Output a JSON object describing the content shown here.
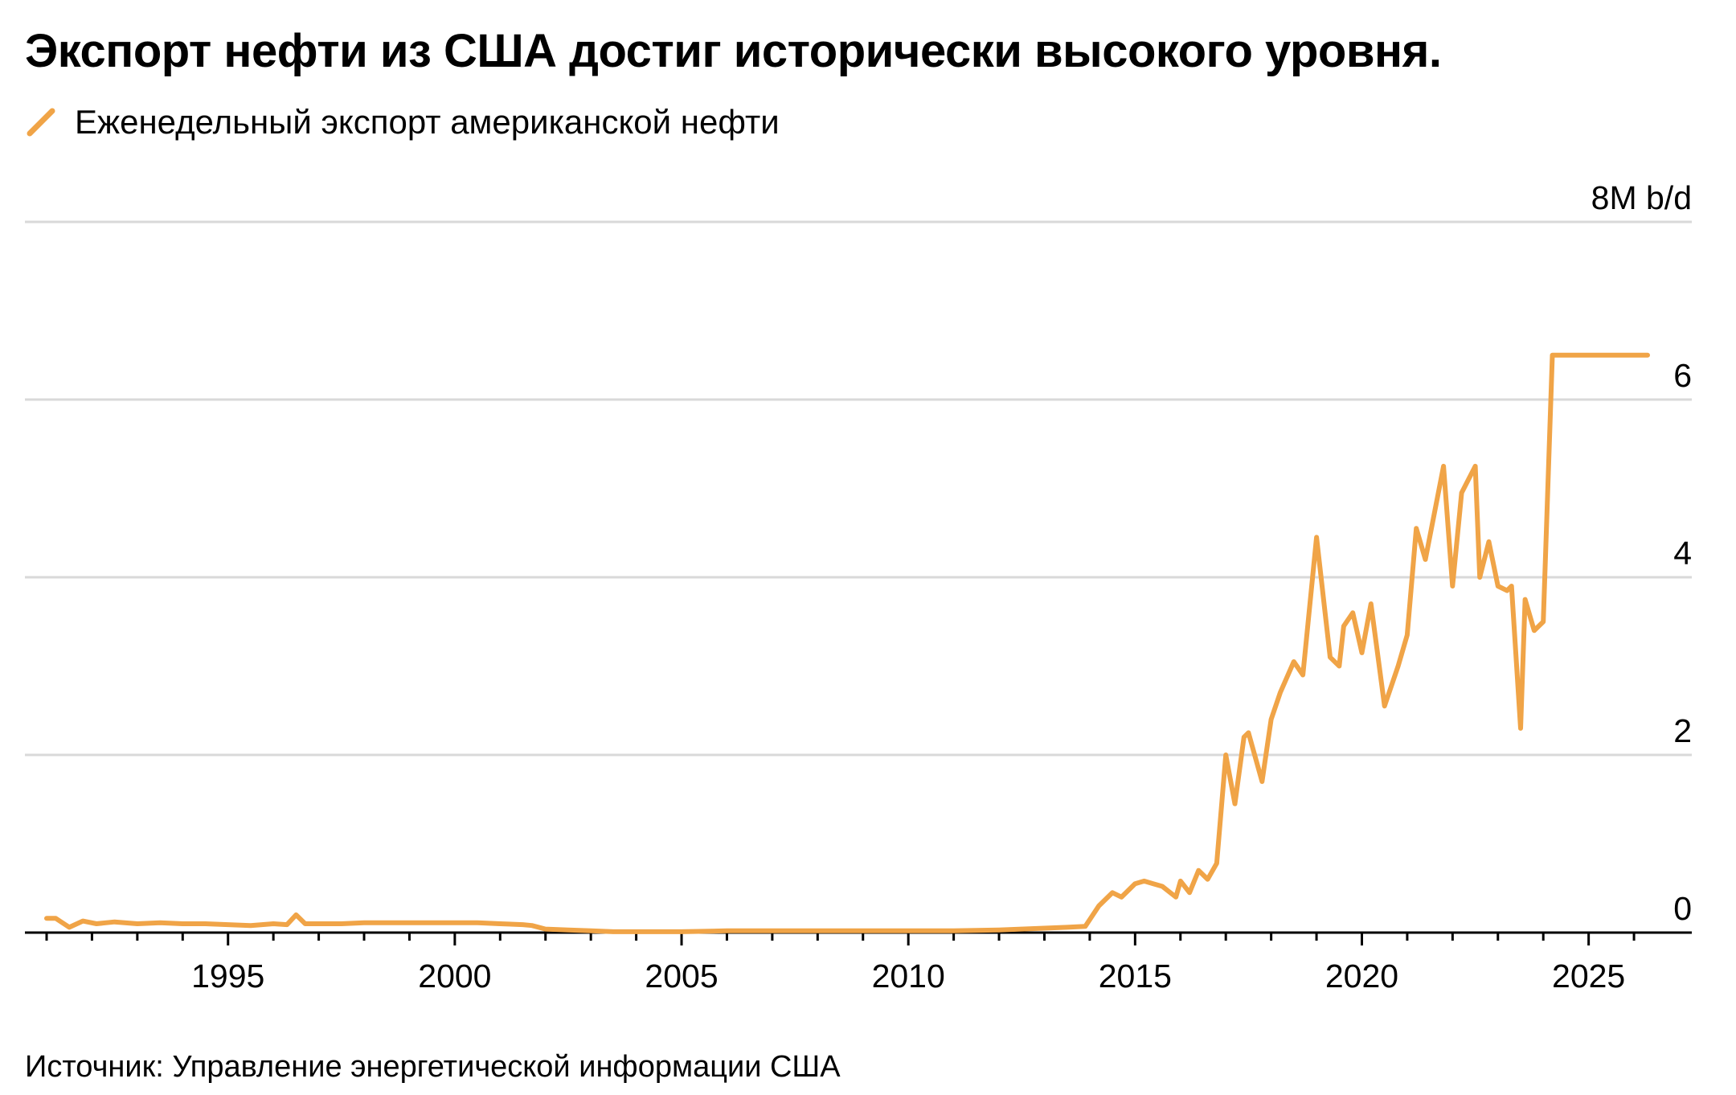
{
  "title": "Экспорт нефти из США достиг исторически высокого уровня.",
  "legend": {
    "label": "Еженедельный экспорт американской нефти"
  },
  "source": "Источник: Управление энергетической информации США",
  "colors": {
    "series": "#f0a447",
    "grid": "#d9d9d9",
    "axis": "#000000",
    "text": "#000000"
  },
  "chart_data": {
    "type": "line",
    "title": "Экспорт нефти из США достиг исторически высокого уровня.",
    "xlabel": "",
    "ylabel": "",
    "y_unit_label": "8M b/d",
    "xlim": [
      1991,
      2026.3
    ],
    "ylim": [
      0,
      8
    ],
    "y_ticks": [
      0,
      2,
      4,
      6,
      8
    ],
    "y_tick_labels": [
      "0",
      "2",
      "4",
      "6",
      "8M b/d"
    ],
    "x_ticks": [
      1995,
      2000,
      2005,
      2010,
      2015,
      2020,
      2025
    ],
    "x_tick_labels": [
      "1995",
      "2000",
      "2005",
      "2010",
      "2015",
      "2020",
      "2025"
    ],
    "grid": true,
    "legend_position": "top-left",
    "series": [
      {
        "name": "Еженедельный экспорт американской нефти",
        "color": "#f0a447",
        "x": [
          1991.0,
          1991.2,
          1991.5,
          1991.8,
          1992.1,
          1992.5,
          1993.0,
          1993.5,
          1994.0,
          1994.5,
          1995.0,
          1995.5,
          1996.0,
          1996.3,
          1996.5,
          1996.7,
          1997.0,
          1997.5,
          1998.0,
          1998.5,
          1999.0,
          1999.5,
          2000.0,
          2000.5,
          2001.0,
          2001.5,
          2001.7,
          2002.0,
          2002.5,
          2003.0,
          2003.5,
          2004.0,
          2004.5,
          2005.0,
          2006.0,
          2007.0,
          2008.0,
          2009.0,
          2010.0,
          2011.0,
          2012.0,
          2012.5,
          2013.0,
          2013.5,
          2013.9,
          2014.2,
          2014.5,
          2014.7,
          2015.0,
          2015.2,
          2015.4,
          2015.6,
          2015.9,
          2016.0,
          2016.2,
          2016.4,
          2016.6,
          2016.8,
          2017.0,
          2017.2,
          2017.4,
          2017.5,
          2017.8,
          2018.0,
          2018.2,
          2018.5,
          2018.7,
          2019.0,
          2019.3,
          2019.5,
          2019.6,
          2019.8,
          2020.0,
          2020.2,
          2020.5,
          2020.8,
          2021.0,
          2021.2,
          2021.4,
          2021.8,
          2022.0,
          2022.2,
          2022.5,
          2022.6,
          2022.8,
          2023.0,
          2023.2,
          2023.3,
          2023.5,
          2023.6,
          2023.8,
          2024.0,
          2024.2,
          2024.5,
          2024.8,
          2025.0,
          2025.2,
          2025.5,
          2025.7,
          2025.9,
          2026.1,
          2026.3
        ],
        "y": [
          0.16,
          0.16,
          0.06,
          0.13,
          0.1,
          0.12,
          0.1,
          0.11,
          0.1,
          0.1,
          0.09,
          0.08,
          0.1,
          0.09,
          0.2,
          0.1,
          0.1,
          0.1,
          0.11,
          0.11,
          0.11,
          0.11,
          0.11,
          0.11,
          0.1,
          0.09,
          0.08,
          0.04,
          0.03,
          0.02,
          0.01,
          0.01,
          0.01,
          0.01,
          0.02,
          0.02,
          0.02,
          0.02,
          0.02,
          0.02,
          0.03,
          0.04,
          0.05,
          0.06,
          0.07,
          0.3,
          0.45,
          0.4,
          0.55,
          0.58,
          0.55,
          0.52,
          0.4,
          0.58,
          0.45,
          0.7,
          0.6,
          0.78,
          2.0,
          1.45,
          2.2,
          2.25,
          1.7,
          2.4,
          2.7,
          3.05,
          2.9,
          4.45,
          3.1,
          3.0,
          3.45,
          3.6,
          3.15,
          3.7,
          2.55,
          3.0,
          3.35,
          4.55,
          4.2,
          5.25,
          3.9,
          4.95,
          5.25,
          4.0,
          4.4,
          3.9,
          3.85,
          3.9,
          2.3,
          3.75,
          3.4,
          3.5,
          6.5,
          6.5,
          6.5,
          6.5,
          6.5,
          6.5,
          6.5,
          6.5,
          6.5,
          6.5
        ]
      }
    ]
  }
}
